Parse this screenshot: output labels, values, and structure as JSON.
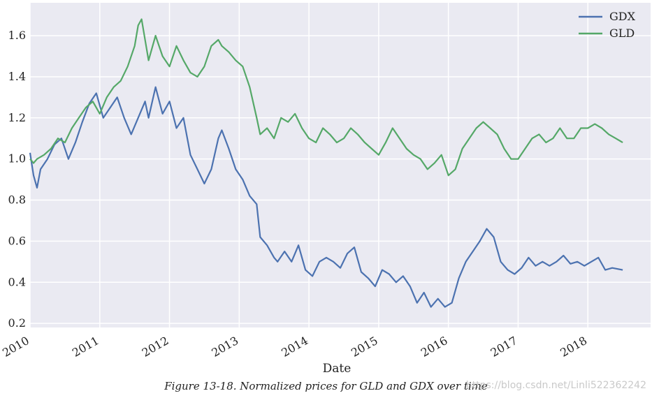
{
  "caption": "Figure 13-18. Normalized prices for GLD and GDX over time",
  "watermark": "https://blog.csdn.net/Linli522362242",
  "chart_data": {
    "type": "line",
    "title": "",
    "xlabel": "Date",
    "ylabel": "",
    "xlim": [
      2010.0,
      2018.9
    ],
    "ylim": [
      0.18,
      1.76
    ],
    "x_ticks": [
      2010,
      2011,
      2012,
      2013,
      2014,
      2015,
      2016,
      2017,
      2018
    ],
    "y_ticks": [
      0.2,
      0.4,
      0.6,
      0.8,
      1.0,
      1.2,
      1.4,
      1.6
    ],
    "y_tick_labels": [
      "0.2",
      "0.4",
      "0.6",
      "0.8",
      "1.0",
      "1.2",
      "1.4",
      "1.6"
    ],
    "grid": true,
    "legend_position": "top-right",
    "background": "#eaeaf2",
    "series": [
      {
        "name": "GDX",
        "color": "#4c72b0",
        "x": [
          2010.0,
          2010.05,
          2010.1,
          2010.15,
          2010.25,
          2010.35,
          2010.45,
          2010.55,
          2010.65,
          2010.75,
          2010.85,
          2010.95,
          2011.05,
          2011.15,
          2011.25,
          2011.35,
          2011.45,
          2011.55,
          2011.65,
          2011.7,
          2011.8,
          2011.9,
          2012.0,
          2012.1,
          2012.2,
          2012.3,
          2012.4,
          2012.5,
          2012.6,
          2012.7,
          2012.75,
          2012.85,
          2012.95,
          2013.05,
          2013.15,
          2013.25,
          2013.3,
          2013.4,
          2013.5,
          2013.55,
          2013.65,
          2013.75,
          2013.85,
          2013.95,
          2014.05,
          2014.15,
          2014.25,
          2014.35,
          2014.45,
          2014.55,
          2014.65,
          2014.75,
          2014.85,
          2014.95,
          2015.05,
          2015.15,
          2015.25,
          2015.35,
          2015.45,
          2015.55,
          2015.65,
          2015.75,
          2015.85,
          2015.95,
          2016.05,
          2016.15,
          2016.25,
          2016.35,
          2016.45,
          2016.55,
          2016.65,
          2016.75,
          2016.85,
          2016.95,
          2017.05,
          2017.15,
          2017.25,
          2017.35,
          2017.45,
          2017.55,
          2017.65,
          2017.75,
          2017.85,
          2017.95,
          2018.05,
          2018.15,
          2018.25,
          2018.35,
          2018.5
        ],
        "values": [
          1.03,
          0.92,
          0.86,
          0.95,
          1.0,
          1.07,
          1.1,
          1.0,
          1.08,
          1.18,
          1.27,
          1.32,
          1.2,
          1.25,
          1.3,
          1.2,
          1.12,
          1.2,
          1.28,
          1.2,
          1.35,
          1.22,
          1.28,
          1.15,
          1.2,
          1.02,
          0.95,
          0.88,
          0.95,
          1.1,
          1.14,
          1.05,
          0.95,
          0.9,
          0.82,
          0.78,
          0.62,
          0.58,
          0.52,
          0.5,
          0.55,
          0.5,
          0.58,
          0.46,
          0.43,
          0.5,
          0.52,
          0.5,
          0.47,
          0.54,
          0.57,
          0.45,
          0.42,
          0.38,
          0.46,
          0.44,
          0.4,
          0.43,
          0.38,
          0.3,
          0.35,
          0.28,
          0.32,
          0.28,
          0.3,
          0.42,
          0.5,
          0.55,
          0.6,
          0.66,
          0.62,
          0.5,
          0.46,
          0.44,
          0.47,
          0.52,
          0.48,
          0.5,
          0.48,
          0.5,
          0.53,
          0.49,
          0.5,
          0.48,
          0.5,
          0.52,
          0.46,
          0.47,
          0.46
        ]
      },
      {
        "name": "GLD",
        "color": "#55a868",
        "x": [
          2010.0,
          2010.05,
          2010.1,
          2010.2,
          2010.3,
          2010.4,
          2010.5,
          2010.6,
          2010.7,
          2010.8,
          2010.9,
          2011.0,
          2011.1,
          2011.2,
          2011.3,
          2011.4,
          2011.5,
          2011.55,
          2011.6,
          2011.65,
          2011.7,
          2011.8,
          2011.9,
          2012.0,
          2012.1,
          2012.2,
          2012.3,
          2012.4,
          2012.5,
          2012.6,
          2012.7,
          2012.75,
          2012.85,
          2012.95,
          2013.05,
          2013.15,
          2013.25,
          2013.3,
          2013.4,
          2013.5,
          2013.6,
          2013.7,
          2013.8,
          2013.9,
          2014.0,
          2014.1,
          2014.2,
          2014.3,
          2014.4,
          2014.5,
          2014.6,
          2014.7,
          2014.8,
          2014.9,
          2015.0,
          2015.1,
          2015.2,
          2015.3,
          2015.4,
          2015.5,
          2015.6,
          2015.7,
          2015.8,
          2015.9,
          2016.0,
          2016.1,
          2016.2,
          2016.3,
          2016.4,
          2016.5,
          2016.6,
          2016.7,
          2016.8,
          2016.9,
          2017.0,
          2017.1,
          2017.2,
          2017.3,
          2017.4,
          2017.5,
          2017.6,
          2017.7,
          2017.8,
          2017.9,
          2018.0,
          2018.1,
          2018.2,
          2018.3,
          2018.4,
          2018.5
        ],
        "values": [
          1.0,
          0.98,
          1.0,
          1.02,
          1.05,
          1.1,
          1.08,
          1.15,
          1.2,
          1.25,
          1.28,
          1.22,
          1.3,
          1.35,
          1.38,
          1.45,
          1.55,
          1.65,
          1.68,
          1.58,
          1.48,
          1.6,
          1.5,
          1.45,
          1.55,
          1.48,
          1.42,
          1.4,
          1.45,
          1.55,
          1.58,
          1.55,
          1.52,
          1.48,
          1.45,
          1.35,
          1.2,
          1.12,
          1.15,
          1.1,
          1.2,
          1.18,
          1.22,
          1.15,
          1.1,
          1.08,
          1.15,
          1.12,
          1.08,
          1.1,
          1.15,
          1.12,
          1.08,
          1.05,
          1.02,
          1.08,
          1.15,
          1.1,
          1.05,
          1.02,
          1.0,
          0.95,
          0.98,
          1.02,
          0.92,
          0.95,
          1.05,
          1.1,
          1.15,
          1.18,
          1.15,
          1.12,
          1.05,
          1.0,
          1.0,
          1.05,
          1.1,
          1.12,
          1.08,
          1.1,
          1.15,
          1.1,
          1.1,
          1.15,
          1.15,
          1.17,
          1.15,
          1.12,
          1.1,
          1.08
        ]
      }
    ]
  }
}
